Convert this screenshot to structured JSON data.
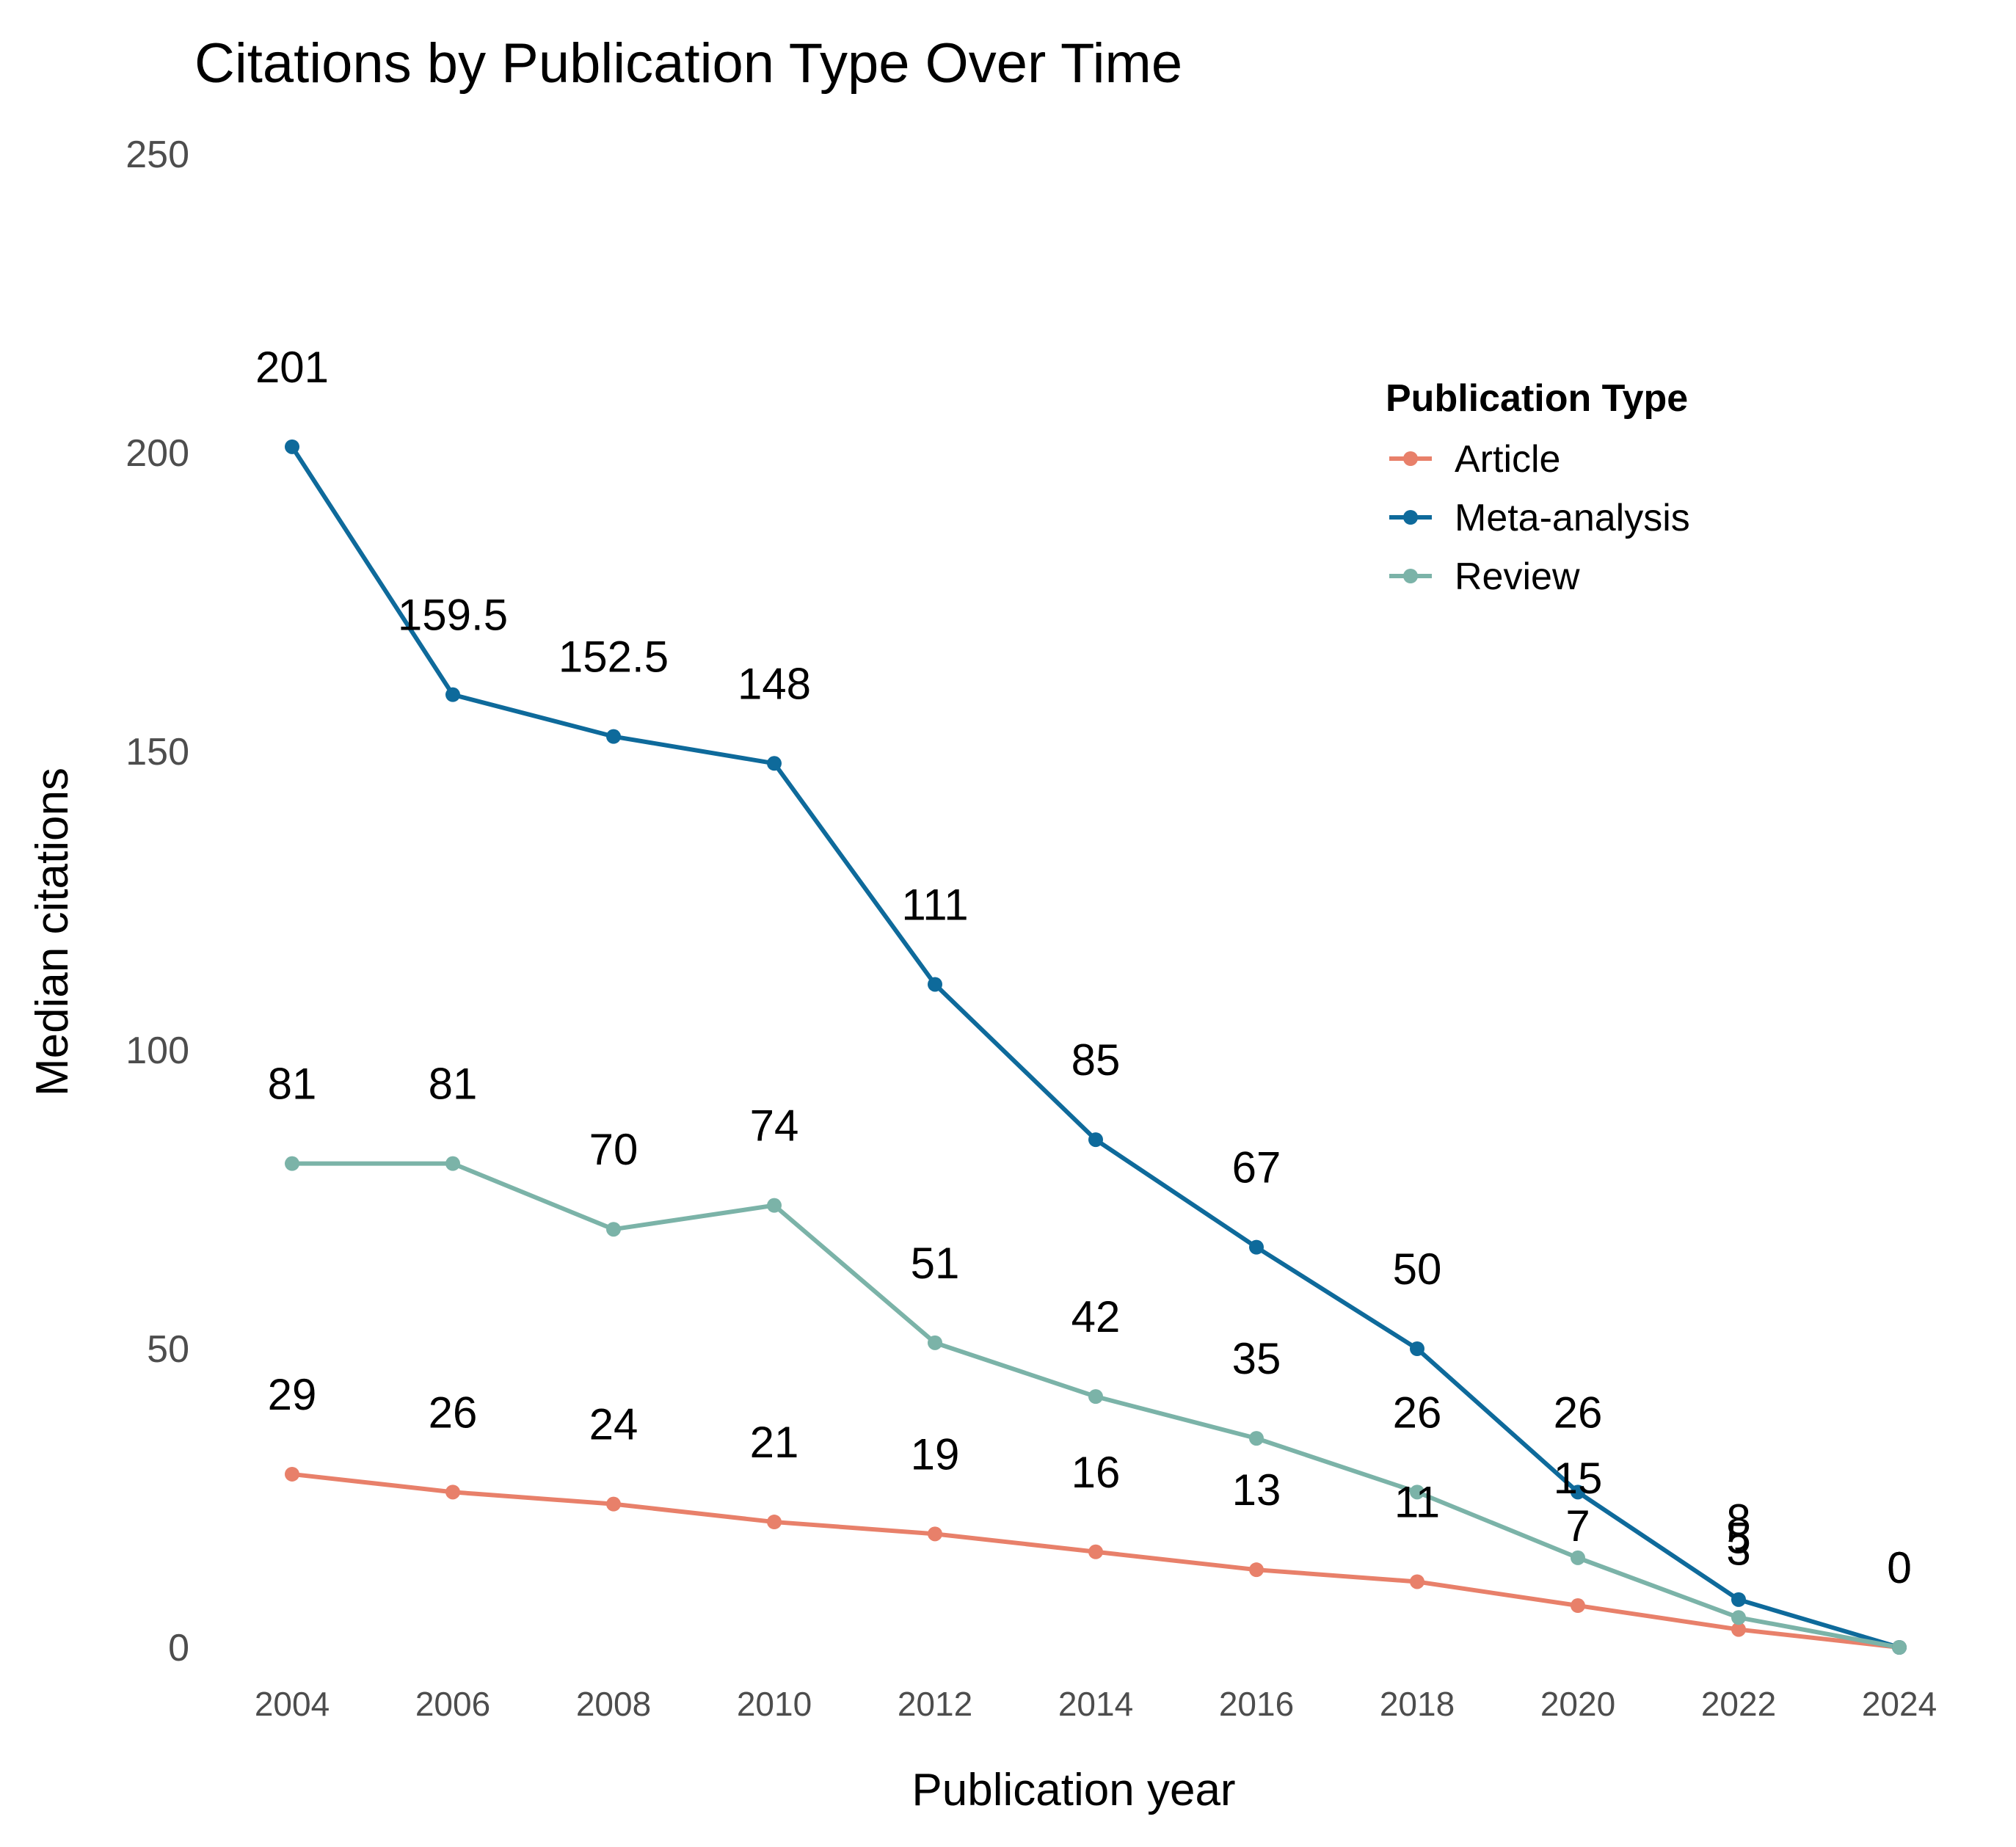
{
  "chart_data": {
    "type": "line",
    "title": "Citations by Publication Type Over Time",
    "xlabel": "Publication year",
    "ylabel": "Median citations",
    "x": [
      2004,
      2006,
      2008,
      2010,
      2012,
      2014,
      2016,
      2018,
      2020,
      2022,
      2024
    ],
    "x_tick_labels": [
      "2004",
      "2006",
      "2008",
      "2010",
      "2012",
      "2014",
      "2016",
      "2018",
      "2020",
      "2022",
      "2024"
    ],
    "y_ticks": [
      0,
      50,
      100,
      150,
      200,
      250
    ],
    "y_tick_labels": [
      "0",
      "50",
      "100",
      "150",
      "200",
      "250"
    ],
    "ylim": [
      0,
      250
    ],
    "xlim": [
      2004,
      2024
    ],
    "grid": false,
    "legend": {
      "title": "Publication Type",
      "placement": "top-right"
    },
    "series": [
      {
        "name": "Article",
        "color": "#E8806A",
        "values": [
          29,
          26,
          24,
          21,
          19,
          16,
          13,
          11,
          7,
          3,
          0
        ],
        "labels": [
          "29",
          "26",
          "24",
          "21",
          "19",
          "16",
          "13",
          "11",
          "7",
          "3",
          "0"
        ]
      },
      {
        "name": "Meta-analysis",
        "color": "#0E6A9B",
        "values": [
          201,
          159.5,
          152.5,
          148,
          111,
          85,
          67,
          50,
          26,
          8,
          0
        ],
        "labels": [
          "201",
          "159.5",
          "152.5",
          "148",
          "111",
          "85",
          "67",
          "50",
          "26",
          "8",
          "0"
        ]
      },
      {
        "name": "Review",
        "color": "#7BB3A8",
        "values": [
          81,
          81,
          70,
          74,
          51,
          42,
          35,
          26,
          15,
          5,
          0
        ],
        "labels": [
          "81",
          "81",
          "70",
          "74",
          "51",
          "42",
          "35",
          "26",
          "15",
          "5",
          "0"
        ]
      }
    ]
  }
}
